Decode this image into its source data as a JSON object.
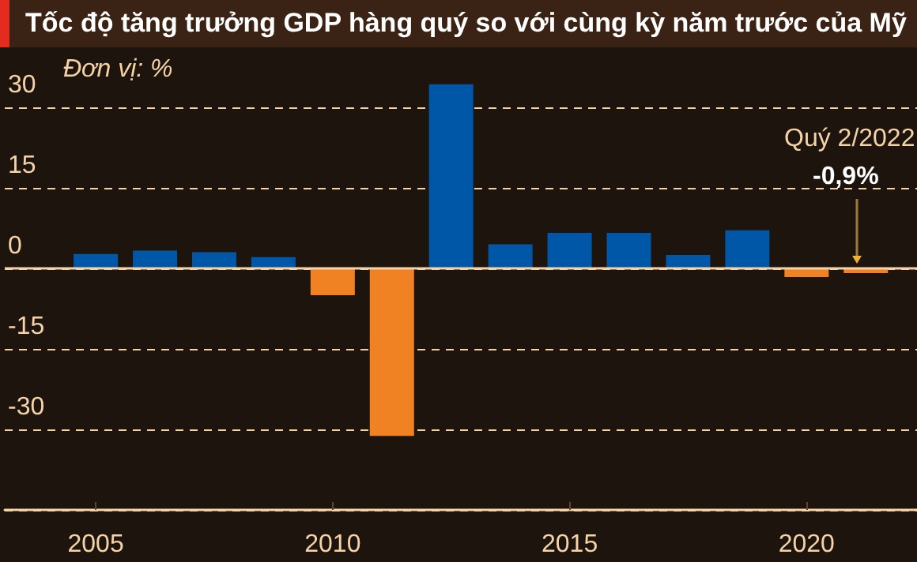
{
  "chart_data": {
    "type": "bar",
    "title": "Tốc độ tăng trưởng GDP hàng quý so với cùng kỳ năm trước của Mỹ",
    "ylabel": "Đơn vị: %",
    "x": [
      2005,
      2006.25,
      2007.5,
      2008.75,
      2010,
      2011.25,
      2012.5,
      2013.75,
      2015,
      2016.25,
      2017.5,
      2018.75,
      2020,
      2021.25
    ],
    "values": [
      2.7,
      3.3,
      3.0,
      2.1,
      -5.0,
      -31.2,
      34.3,
      4.5,
      6.6,
      6.6,
      2.5,
      7.1,
      -1.6,
      -0.9
    ],
    "colors": [
      "#0057a8",
      "#0057a8",
      "#0057a8",
      "#0057a8",
      "#f08223",
      "#f08223",
      "#0057a8",
      "#0057a8",
      "#0057a8",
      "#0057a8",
      "#0057a8",
      "#0057a8",
      "#f08223",
      "#f08223"
    ],
    "xlim": [
      2003.08,
      2022.33
    ],
    "xticks": [
      2005,
      2010,
      2015,
      2020
    ],
    "ylim": [
      -45,
      50
    ],
    "yticks": [
      {
        "value": -45,
        "label": null
      },
      -30,
      -15,
      0,
      15,
      30
    ],
    "ref_lines": [
      {
        "axis": "y",
        "value": 0,
        "label": null,
        "color": "#f5d3a8",
        "line_style": "solid"
      }
    ],
    "annotations": [
      "Quý 2/2022",
      "-0,9%"
    ],
    "grid": "y"
  }
}
